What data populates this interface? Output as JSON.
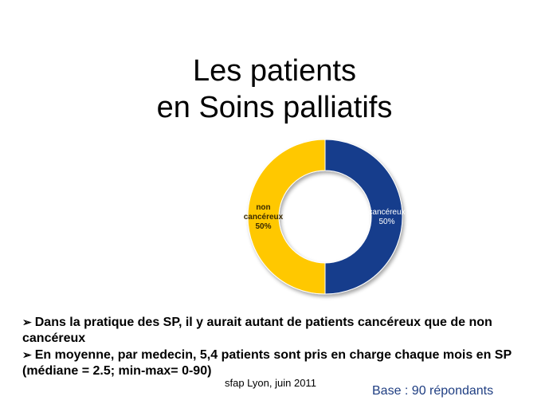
{
  "title": {
    "line1": "Les patients",
    "line2": "en Soins palliatifs"
  },
  "chart_data": {
    "type": "pie",
    "donut": true,
    "title": "",
    "categories": [
      "cancéreux",
      "non cancéreux"
    ],
    "values": [
      50,
      50
    ],
    "data_labels": [
      {
        "lines": [
          "cancéreux",
          "50%"
        ]
      },
      {
        "lines": [
          "non",
          "cancéreux",
          "50%"
        ]
      }
    ],
    "colors": [
      "#173e8c",
      "#ffc800"
    ],
    "legend": "none"
  },
  "bullets": [
    {
      "icon": "arrow-bullet-icon",
      "text": "Dans la pratique des SP,  il y aurait autant de patients cancéreux  que de non cancéreux"
    },
    {
      "icon": "arrow-bullet-icon",
      "text": "En moyenne, par medecin, 5,4 patients sont pris en charge  chaque mois en SP (médiane = 2.5; min-max= 0-90)"
    }
  ],
  "footer": "sfap Lyon, juin 2011",
  "base": "Base : 90 répondants"
}
